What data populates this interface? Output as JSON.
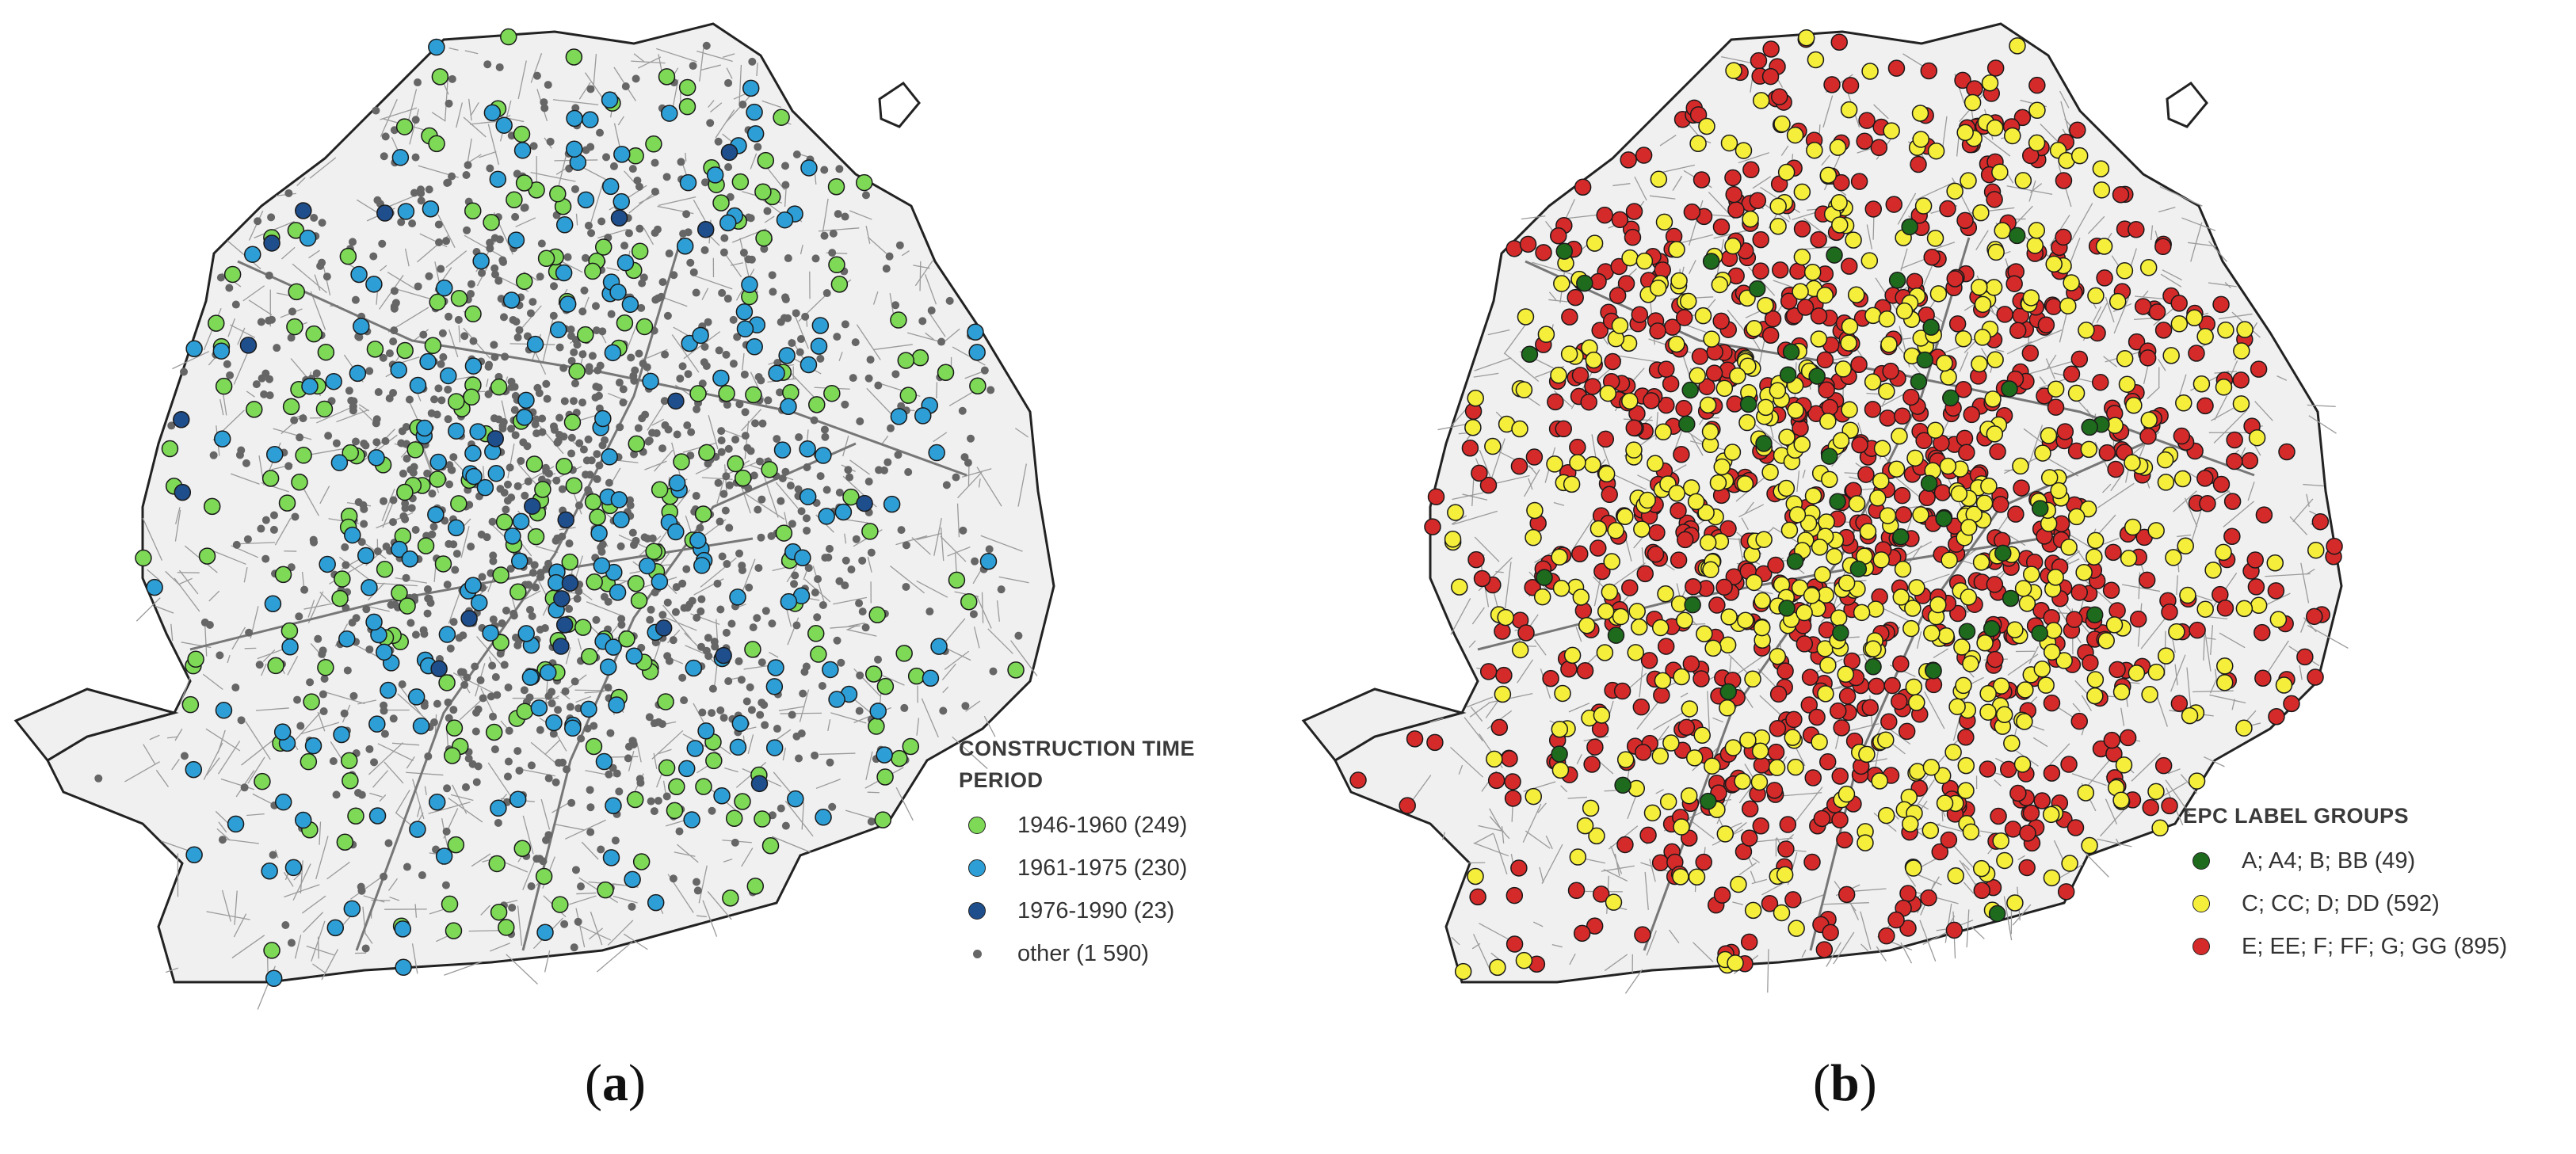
{
  "panels": {
    "a": {
      "caption_letter": "a",
      "legend": {
        "title_line1": "CONSTRUCTION TIME",
        "title_line2": "PERIOD",
        "items": [
          {
            "label": "1946-1960 (249)",
            "color": "#7ed957"
          },
          {
            "label": "1961-1975 (230)",
            "color": "#2e9fd6"
          },
          {
            "label": "1976-1990 (23)",
            "color": "#1f4e8c"
          },
          {
            "label": "other (1 590)",
            "color": "#666666"
          }
        ]
      }
    },
    "b": {
      "caption_letter": "b",
      "legend": {
        "title": "EPC LABEL GROUPS",
        "items": [
          {
            "label": "A; A4; B; BB (49)",
            "color": "#1e6b1e"
          },
          {
            "label": "C; CC; D; DD (592)",
            "color": "#f5ef3b"
          },
          {
            "label": "E; EE; F; FF; G; GG (895)",
            "color": "#d42a2a"
          }
        ]
      }
    }
  },
  "colors": {
    "map_fill": "#f0f0f0",
    "map_outline": "#222222",
    "streets": "#9a9a9a"
  }
}
